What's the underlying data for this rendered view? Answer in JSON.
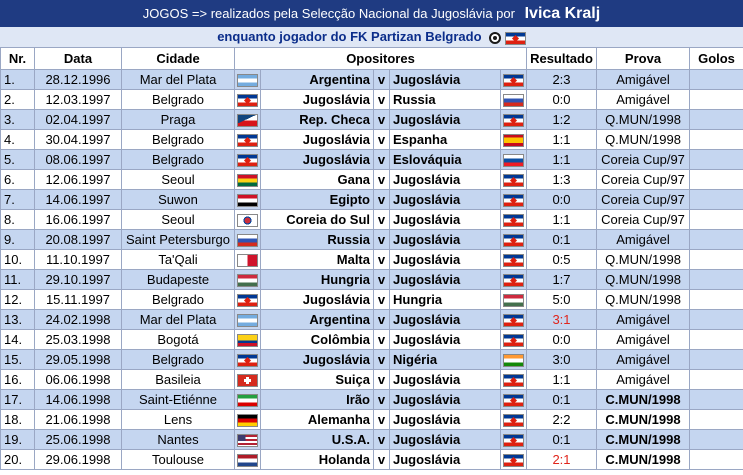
{
  "header": {
    "line1_prefix": "JOGOS => realizados pela Selecção Nacional da Jugoslávia por",
    "line1_name": "Ivica Kralj",
    "line2": "enquanto jogador do FK Partizan Belgrado"
  },
  "columns": {
    "nr": "Nr.",
    "data": "Data",
    "cidade": "Cidade",
    "opositores": "Opositores",
    "resultado": "Resultado",
    "prova": "Prova",
    "golos": "Golos"
  },
  "rows": [
    {
      "nr": "1.",
      "data": "28.12.1996",
      "cidade": "Mar del Plata",
      "home": "Argentina",
      "v": "v",
      "away": "Jugoslávia",
      "resultado": "2:3",
      "prova": "Amigável",
      "golos": "",
      "home_flag": "flag-arg",
      "away_flag": "flag-yug",
      "bold_prova": false,
      "red": false
    },
    {
      "nr": "2.",
      "data": "12.03.1997",
      "cidade": "Belgrado",
      "home": "Jugoslávia",
      "v": "v",
      "away": "Russia",
      "resultado": "0:0",
      "prova": "Amigável",
      "golos": "",
      "home_flag": "flag-yug",
      "away_flag": "flag-rus",
      "bold_prova": false,
      "red": false
    },
    {
      "nr": "3.",
      "data": "02.04.1997",
      "cidade": "Praga",
      "home": "Rep. Checa",
      "v": "v",
      "away": "Jugoslávia",
      "resultado": "1:2",
      "prova": "Q.MUN/1998",
      "golos": "",
      "home_flag": "flag-cze",
      "away_flag": "flag-yug",
      "bold_prova": false,
      "red": false
    },
    {
      "nr": "4.",
      "data": "30.04.1997",
      "cidade": "Belgrado",
      "home": "Jugoslávia",
      "v": "v",
      "away": "Espanha",
      "resultado": "1:1",
      "prova": "Q.MUN/1998",
      "golos": "",
      "home_flag": "flag-yug",
      "away_flag": "flag-esp",
      "bold_prova": false,
      "red": false
    },
    {
      "nr": "5.",
      "data": "08.06.1997",
      "cidade": "Belgrado",
      "home": "Jugoslávia",
      "v": "v",
      "away": "Eslováquia",
      "resultado": "1:1",
      "prova": "Coreia Cup/97",
      "golos": "",
      "home_flag": "flag-yug",
      "away_flag": "flag-svk",
      "bold_prova": false,
      "red": false
    },
    {
      "nr": "6.",
      "data": "12.06.1997",
      "cidade": "Seoul",
      "home": "Gana",
      "v": "v",
      "away": "Jugoslávia",
      "resultado": "1:3",
      "prova": "Coreia Cup/97",
      "golos": "",
      "home_flag": "flag-gha",
      "away_flag": "flag-yug",
      "bold_prova": false,
      "red": false
    },
    {
      "nr": "7.",
      "data": "14.06.1997",
      "cidade": "Suwon",
      "home": "Egipto",
      "v": "v",
      "away": "Jugoslávia",
      "resultado": "0:0",
      "prova": "Coreia Cup/97",
      "golos": "",
      "home_flag": "flag-egy",
      "away_flag": "flag-yug",
      "bold_prova": false,
      "red": false
    },
    {
      "nr": "8.",
      "data": "16.06.1997",
      "cidade": "Seoul",
      "home": "Coreia do Sul",
      "v": "v",
      "away": "Jugoslávia",
      "resultado": "1:1",
      "prova": "Coreia Cup/97",
      "golos": "",
      "home_flag": "flag-kor",
      "away_flag": "flag-yug",
      "bold_prova": false,
      "red": false
    },
    {
      "nr": "9.",
      "data": "20.08.1997",
      "cidade": "Saint Petersburgo",
      "home": "Russia",
      "v": "v",
      "away": "Jugoslávia",
      "resultado": "0:1",
      "prova": "Amigável",
      "golos": "",
      "home_flag": "flag-rus",
      "away_flag": "flag-yug",
      "bold_prova": false,
      "red": false
    },
    {
      "nr": "10.",
      "data": "11.10.1997",
      "cidade": "Ta'Qali",
      "home": "Malta",
      "v": "v",
      "away": "Jugoslávia",
      "resultado": "0:5",
      "prova": "Q.MUN/1998",
      "golos": "",
      "home_flag": "flag-mlt",
      "away_flag": "flag-yug",
      "bold_prova": false,
      "red": false
    },
    {
      "nr": "11.",
      "data": "29.10.1997",
      "cidade": "Budapeste",
      "home": "Hungria",
      "v": "v",
      "away": "Jugoslávia",
      "resultado": "1:7",
      "prova": "Q.MUN/1998",
      "golos": "",
      "home_flag": "flag-hun",
      "away_flag": "flag-yug",
      "bold_prova": false,
      "red": false
    },
    {
      "nr": "12.",
      "data": "15.11.1997",
      "cidade": "Belgrado",
      "home": "Jugoslávia",
      "v": "v",
      "away": "Hungria",
      "resultado": "5:0",
      "prova": "Q.MUN/1998",
      "golos": "",
      "home_flag": "flag-yug",
      "away_flag": "flag-hun",
      "bold_prova": false,
      "red": false
    },
    {
      "nr": "13.",
      "data": "24.02.1998",
      "cidade": "Mar del Plata",
      "home": "Argentina",
      "v": "v",
      "away": "Jugoslávia",
      "resultado": "3:1",
      "prova": "Amigável",
      "golos": "",
      "home_flag": "flag-arg",
      "away_flag": "flag-yug",
      "bold_prova": false,
      "red": true
    },
    {
      "nr": "14.",
      "data": "25.03.1998",
      "cidade": "Bogotá",
      "home": "Colômbia",
      "v": "v",
      "away": "Jugoslávia",
      "resultado": "0:0",
      "prova": "Amigável",
      "golos": "",
      "home_flag": "flag-col",
      "away_flag": "flag-yug",
      "bold_prova": false,
      "red": false
    },
    {
      "nr": "15.",
      "data": "29.05.1998",
      "cidade": "Belgrado",
      "home": "Jugoslávia",
      "v": "v",
      "away": "Nigéria",
      "resultado": "3:0",
      "prova": "Amigável",
      "golos": "",
      "home_flag": "flag-yug",
      "away_flag": "flag-ind",
      "bold_prova": false,
      "red": false
    },
    {
      "nr": "16.",
      "data": "06.06.1998",
      "cidade": "Basileia",
      "home": "Suiça",
      "v": "v",
      "away": "Jugoslávia",
      "resultado": "1:1",
      "prova": "Amigável",
      "golos": "",
      "home_flag": "flag-sui",
      "away_flag": "flag-yug",
      "bold_prova": false,
      "red": false
    },
    {
      "nr": "17.",
      "data": "14.06.1998",
      "cidade": "Saint-Etiénne",
      "home": "Irão",
      "v": "v",
      "away": "Jugoslávia",
      "resultado": "0:1",
      "prova": "C.MUN/1998",
      "golos": "",
      "home_flag": "flag-irn",
      "away_flag": "flag-yug",
      "bold_prova": true,
      "red": false
    },
    {
      "nr": "18.",
      "data": "21.06.1998",
      "cidade": "Lens",
      "home": "Alemanha",
      "v": "v",
      "away": "Jugoslávia",
      "resultado": "2:2",
      "prova": "C.MUN/1998",
      "golos": "",
      "home_flag": "flag-ger",
      "away_flag": "flag-yug",
      "bold_prova": true,
      "red": false
    },
    {
      "nr": "19.",
      "data": "25.06.1998",
      "cidade": "Nantes",
      "home": "U.S.A.",
      "v": "v",
      "away": "Jugoslávia",
      "resultado": "0:1",
      "prova": "C.MUN/1998",
      "golos": "",
      "home_flag": "flag-usa",
      "away_flag": "flag-yug",
      "bold_prova": true,
      "red": false
    },
    {
      "nr": "20.",
      "data": "29.06.1998",
      "cidade": "Toulouse",
      "home": "Holanda",
      "v": "v",
      "away": "Jugoslávia",
      "resultado": "2:1",
      "prova": "C.MUN/1998",
      "golos": "",
      "home_flag": "flag-ned",
      "away_flag": "flag-yug",
      "bold_prova": true,
      "red": true
    }
  ],
  "colors": {
    "header_bg": "#1f3b82",
    "subheader_bg": "#dfe7f5",
    "row_blue": "#c5d6f0",
    "loss_red": "#e0241b"
  }
}
